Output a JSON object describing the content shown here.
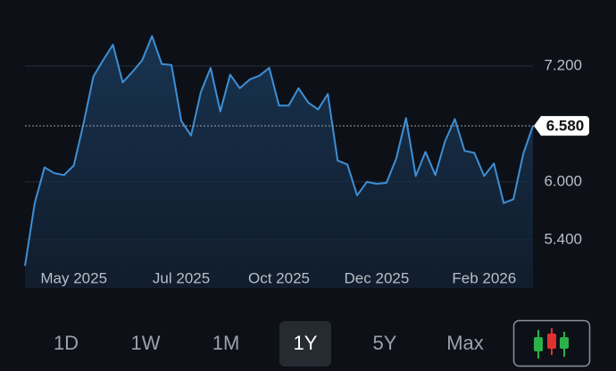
{
  "chart_data": {
    "type": "line",
    "color": "#3d8fd6",
    "values": [
      5.13,
      5.78,
      6.15,
      6.09,
      6.07,
      6.17,
      6.61,
      7.09,
      7.26,
      7.42,
      7.03,
      7.14,
      7.26,
      7.51,
      7.22,
      7.21,
      6.63,
      6.48,
      6.93,
      7.18,
      6.73,
      7.11,
      6.97,
      7.06,
      7.1,
      7.18,
      6.79,
      6.79,
      6.97,
      6.82,
      6.75,
      6.91,
      6.22,
      6.18,
      5.86,
      6.0,
      5.98,
      5.99,
      6.24,
      6.66,
      6.06,
      6.31,
      6.07,
      6.42,
      6.65,
      6.32,
      6.3,
      6.06,
      6.19,
      5.78,
      5.82,
      6.29,
      6.58
    ],
    "xticks": [
      {
        "value": 5,
        "label": "May 2025"
      },
      {
        "value": 16,
        "label": "Jul 2025"
      },
      {
        "value": 26,
        "label": "Oct 2025"
      },
      {
        "value": 36,
        "label": "Dec 2025"
      },
      {
        "value": 47,
        "label": "Feb 2026"
      }
    ],
    "ylim": [
      4.9,
      7.8
    ],
    "yticks": [
      {
        "value": 5.4,
        "label": "5.400"
      },
      {
        "value": 6.0,
        "label": "6.000"
      },
      {
        "value": 7.2,
        "label": "7.200"
      }
    ],
    "grid": true,
    "last_value": {
      "value": 6.58,
      "label": "6.580"
    },
    "range_buttons": [
      "1D",
      "1W",
      "1M",
      "1Y",
      "5Y",
      "Max"
    ],
    "selected_index": 3
  }
}
